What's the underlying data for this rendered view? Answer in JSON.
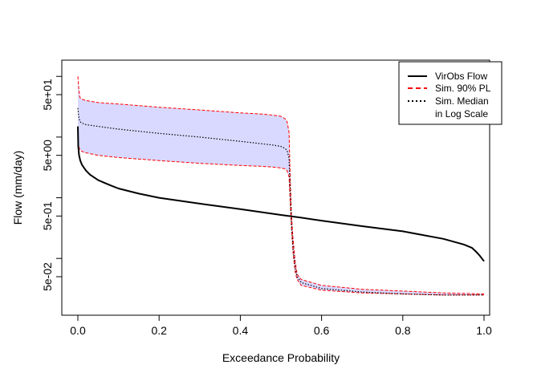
{
  "chart_data": {
    "type": "line",
    "title": "",
    "xlabel": "Exceedance Probability",
    "ylabel": "Flow (mm/day)",
    "y_scale": "log",
    "xlim": [
      0,
      1
    ],
    "ylim": [
      0.02,
      200
    ],
    "grid": false,
    "legend_position": "top-right",
    "x_ticks": [
      0.0,
      0.2,
      0.4,
      0.6,
      0.8,
      1.0
    ],
    "x_tick_labels": [
      "0.0",
      "0.2",
      "0.4",
      "0.6",
      "0.8",
      "1.0"
    ],
    "y_ticks_major": [
      0.05,
      0.5,
      5,
      50
    ],
    "y_tick_labels": [
      "5e-02",
      "5e-01",
      "5e+00",
      "5e+01"
    ],
    "y_ticks_minor": [
      0.1,
      1,
      10,
      100
    ],
    "band": {
      "name": "Sim. 90% PL",
      "fill_color": "#d9d9ff",
      "line_color": "#ff0000",
      "x": [
        0,
        0.002,
        0.005,
        0.01,
        0.02,
        0.05,
        0.1,
        0.2,
        0.3,
        0.4,
        0.45,
        0.48,
        0.5,
        0.51,
        0.515,
        0.52,
        0.523,
        0.526,
        0.53,
        0.535,
        0.54,
        0.55,
        0.6,
        0.7,
        0.8,
        0.9,
        1.0
      ],
      "upper": [
        100,
        65,
        45,
        42,
        40,
        37,
        35,
        31,
        28,
        25,
        24,
        23,
        22,
        20,
        18,
        12,
        2,
        0.5,
        0.2,
        0.09,
        0.055,
        0.045,
        0.036,
        0.031,
        0.029,
        0.027,
        0.026
      ],
      "lower": [
        10,
        7,
        6.2,
        5.8,
        5.5,
        5.0,
        4.6,
        4.1,
        3.7,
        3.4,
        3.3,
        3.2,
        3.1,
        3.0,
        2.8,
        2.2,
        0.8,
        0.3,
        0.12,
        0.06,
        0.045,
        0.036,
        0.03,
        0.027,
        0.026,
        0.025,
        0.025
      ]
    },
    "series": [
      {
        "name": "VirObs Flow",
        "color": "#000000",
        "dash": "solid",
        "x": [
          0,
          0.001,
          0.003,
          0.006,
          0.01,
          0.02,
          0.03,
          0.05,
          0.08,
          0.1,
          0.15,
          0.2,
          0.3,
          0.4,
          0.5,
          0.55,
          0.6,
          0.7,
          0.8,
          0.9,
          0.95,
          0.97,
          0.98,
          0.99,
          1.0
        ],
        "y": [
          15,
          7,
          5,
          4.1,
          3.5,
          2.8,
          2.4,
          1.95,
          1.6,
          1.42,
          1.17,
          1.0,
          0.8,
          0.65,
          0.52,
          0.47,
          0.42,
          0.34,
          0.28,
          0.21,
          0.17,
          0.15,
          0.13,
          0.11,
          0.09
        ]
      },
      {
        "name": "Sim. Median",
        "color": "#000000",
        "dash": "dotted",
        "x": [
          0,
          0.002,
          0.005,
          0.01,
          0.02,
          0.05,
          0.1,
          0.2,
          0.3,
          0.4,
          0.45,
          0.48,
          0.5,
          0.51,
          0.515,
          0.52,
          0.523,
          0.526,
          0.53,
          0.535,
          0.54,
          0.55,
          0.6,
          0.7,
          0.8,
          0.9,
          1.0
        ],
        "y": [
          30,
          22,
          18,
          17,
          16,
          15,
          13.5,
          11.5,
          10,
          8.5,
          7.8,
          7.4,
          7.0,
          6.5,
          6.0,
          4.5,
          1.2,
          0.35,
          0.14,
          0.07,
          0.05,
          0.04,
          0.032,
          0.028,
          0.026,
          0.025,
          0.025
        ]
      }
    ],
    "legend": {
      "entries": [
        {
          "label": "VirObs Flow",
          "color": "#000000",
          "dash": "solid"
        },
        {
          "label": "Sim. 90% PL",
          "color": "#ff0000",
          "dash": "dashed"
        },
        {
          "label": "Sim. Median",
          "color": "#000000",
          "dash": "dotted"
        }
      ],
      "extra_line": "in Log Scale"
    }
  }
}
